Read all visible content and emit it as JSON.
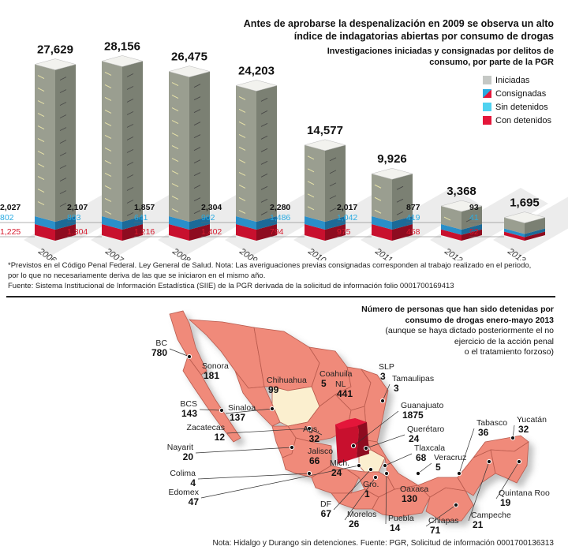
{
  "chart_data": [
    {
      "type": "bar",
      "title": "Antes de aprobarse la despenalización en 2009 se observa un alto índice de indagatorias abiertas por consumo de drogas",
      "subtitle": "Investigaciones iniciadas y consignadas por delitos de consumo, por parte de la PGR",
      "categories": [
        "2006",
        "2007",
        "2008",
        "2009",
        "2010",
        "2011",
        "2012",
        "2013"
      ],
      "series": [
        {
          "name": "Iniciadas",
          "color": "#c5c8c5",
          "values": [
            27629,
            28156,
            26475,
            24203,
            14577,
            9926,
            3368,
            1695
          ],
          "labels": [
            "27,629",
            "28,156",
            "26,475",
            "24,203",
            "14,577",
            "9,926",
            "3,368",
            "1,695"
          ]
        },
        {
          "name": "Consignadas",
          "color": "#111111",
          "values": [
            2027,
            2107,
            1857,
            2304,
            2280,
            2017,
            877,
            93
          ],
          "labels": [
            "2,027",
            "2,107",
            "1,857",
            "2,304",
            "2,280",
            "2,017",
            "877",
            "93"
          ]
        },
        {
          "name": "Sin detenidos",
          "color": "#29abe2",
          "values": [
            802,
            803,
            641,
            902,
            1486,
            1042,
            419,
            41
          ],
          "labels": [
            "802",
            "803",
            "641",
            "902",
            "1,486",
            "1,042",
            "419",
            "41"
          ]
        },
        {
          "name": "Con detenidos",
          "color": "#d7192d",
          "values": [
            1225,
            1304,
            1216,
            1402,
            794,
            975,
            458,
            52
          ],
          "labels": [
            "1,225",
            "1,304",
            "1,216",
            "1,402",
            "794",
            "975",
            "458",
            "52"
          ]
        }
      ],
      "legend": {
        "position": "right",
        "items": [
          {
            "label": "Iniciadas",
            "color": "#c5c8c5"
          },
          {
            "label": "Consignadas",
            "color": "#d7192d",
            "color2": "#29abe2"
          },
          {
            "label": "Sin detenidos",
            "color": "#4fd2f0"
          },
          {
            "label": "Con detenidos",
            "color": "#e4163a"
          }
        ]
      },
      "xlabel": "",
      "ylabel": "",
      "ylim": [
        0,
        30000
      ]
    },
    {
      "type": "table",
      "title": "Número de personas que han sido detenidas por consumo de drogas enero-mayo 2013",
      "subtitle": "(aunque se haya dictado posteriormente el no ejercicio de la acción penal o el tratamiento forzoso)",
      "columns": [
        "Estado",
        "Detenidos"
      ],
      "rows": [
        [
          "BC",
          780
        ],
        [
          "Sonora",
          181
        ],
        [
          "Chihuahua",
          99
        ],
        [
          "Coahuila",
          5
        ],
        [
          "SLP",
          3
        ],
        [
          "Tamaulipas",
          3
        ],
        [
          "NL",
          441
        ],
        [
          "Guanajuato",
          1875
        ],
        [
          "BCS",
          143
        ],
        [
          "Sinaloa",
          137
        ],
        [
          "Zacatecas",
          12
        ],
        [
          "Ags.",
          32
        ],
        [
          "Querétaro",
          24
        ],
        [
          "Nayarit",
          20
        ],
        [
          "Jalisco",
          66
        ],
        [
          "Tlaxcala",
          68
        ],
        [
          "Veracruz",
          5
        ],
        [
          "Colima",
          4
        ],
        [
          "Mich.",
          24
        ],
        [
          "Gro.",
          1
        ],
        [
          "Edomex",
          47
        ],
        [
          "Oaxaca",
          130
        ],
        [
          "DF",
          67
        ],
        [
          "Morelos",
          26
        ],
        [
          "Puebla",
          14
        ],
        [
          "Chiapas",
          71
        ],
        [
          "Campeche",
          21
        ],
        [
          "Tabasco",
          36
        ],
        [
          "Yucatán",
          32
        ],
        [
          "Quintana Roo",
          19
        ]
      ]
    }
  ],
  "header": {
    "title": "Antes de aprobarse la despenalización en 2009 se observa un alto índice de indagatorias abiertas por consumo de drogas",
    "subtitle": "Investigaciones iniciadas y consignadas por delitos de consumo, por parte de la PGR"
  },
  "legend": [
    "Iniciadas",
    "Consignadas",
    "Sin detenidos",
    "Con detenidos"
  ],
  "notes": {
    "line1": "*Previstos en el Código Penal Federal. Ley General de Salud. Nota: Las averiguaciones previas consignadas corresponden al trabajo realizado en el periodo,",
    "line2": "por lo que no necesariamente deriva de las que se iniciaron en el mismo año.",
    "line3": "Fuente: Sistema Institucional de Información Estadística (SIIE) de la PGR derivada de la solicitud de información folio 0001700169413"
  },
  "map": {
    "title": "Número de personas que han sido detenidas por consumo de drogas enero-mayo 2013",
    "subtitle1": "(aunque se haya dictado posteriormente el no",
    "subtitle2": "ejercicio de la acción penal",
    "subtitle3": "o el tratamiento forzoso)",
    "highlight_color": "#e4163a",
    "state_color": "#f08a7a",
    "footer": "Nota: Hidalgo y Durango sin detenciones. Fuente: PGR, Solicitud de información 0001700136313"
  }
}
